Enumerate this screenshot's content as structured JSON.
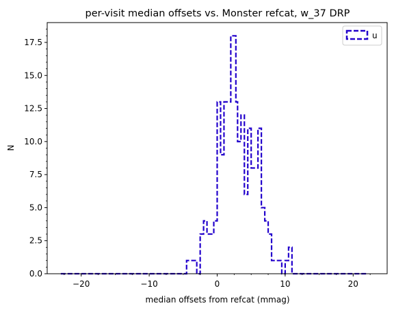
{
  "chart_data": {
    "type": "histogram",
    "title": "per-visit median offsets vs. Monster refcat, w_37 DRP",
    "xlabel": "median offsets from refcat (mmag)",
    "ylabel": "N",
    "xlim": [
      -25,
      25
    ],
    "ylim": [
      0,
      19
    ],
    "x_ticks": [
      -20,
      -10,
      0,
      10,
      20
    ],
    "x_tick_labels": [
      "−20",
      "−10",
      "0",
      "10",
      "20"
    ],
    "y_ticks": [
      0.0,
      2.5,
      5.0,
      7.5,
      10.0,
      12.5,
      15.0,
      17.5
    ],
    "y_tick_labels": [
      "0.0",
      "2.5",
      "5.0",
      "7.5",
      "10.0",
      "12.5",
      "15.0",
      "17.5"
    ],
    "grid": false,
    "legend_position": "top-right",
    "series": [
      {
        "name": "u",
        "color": "#2200cc",
        "linestyle": "dashed",
        "histtype": "step",
        "bin_edges": [
          -4.5,
          -3.0,
          -2.5,
          -2.0,
          -1.5,
          -0.5,
          0.0,
          0.5,
          1.0,
          1.5,
          2.0,
          2.5,
          2.75,
          3.0,
          3.5,
          4.0,
          4.5,
          5.0,
          5.5,
          6.0,
          6.5,
          7.0,
          7.5,
          8.0,
          9.5,
          10.0,
          10.5,
          11.0
        ],
        "counts": [
          1,
          0,
          3,
          4,
          3,
          4,
          13,
          9,
          13,
          13,
          18,
          18,
          13,
          10,
          12,
          6,
          11,
          8,
          8,
          11,
          5,
          4,
          3,
          1,
          0,
          1,
          2
        ],
        "x_range": [
          -23,
          22
        ]
      }
    ]
  }
}
